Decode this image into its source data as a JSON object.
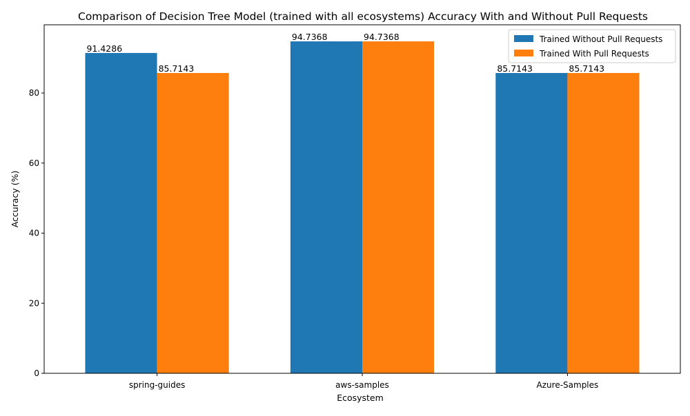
{
  "chart_data": {
    "type": "bar",
    "title": "Comparison of Decision Tree Model (trained with all ecosystems) Accuracy With and Without Pull Requests",
    "xlabel": "Ecosystem",
    "ylabel": "Accuracy (%)",
    "categories": [
      "spring-guides",
      "aws-samples",
      "Azure-Samples"
    ],
    "series": [
      {
        "name": "Trained Without Pull Requests",
        "color": "#1f77b4",
        "values": [
          91.4286,
          94.7368,
          85.7143
        ],
        "labels": [
          "91.4286",
          "94.7368",
          "85.7143"
        ]
      },
      {
        "name": "Trained With Pull Requests",
        "color": "#ff7f0e",
        "values": [
          85.7143,
          94.7368,
          85.7143
        ],
        "labels": [
          "85.7143",
          "94.7368",
          "85.7143"
        ]
      }
    ],
    "ylim": [
      0,
      99.47
    ],
    "yticks": [
      0,
      20,
      40,
      60,
      80
    ],
    "ytick_labels": [
      "0",
      "20",
      "40",
      "60",
      "80"
    ],
    "grid": false,
    "legend_position": "top-right"
  }
}
